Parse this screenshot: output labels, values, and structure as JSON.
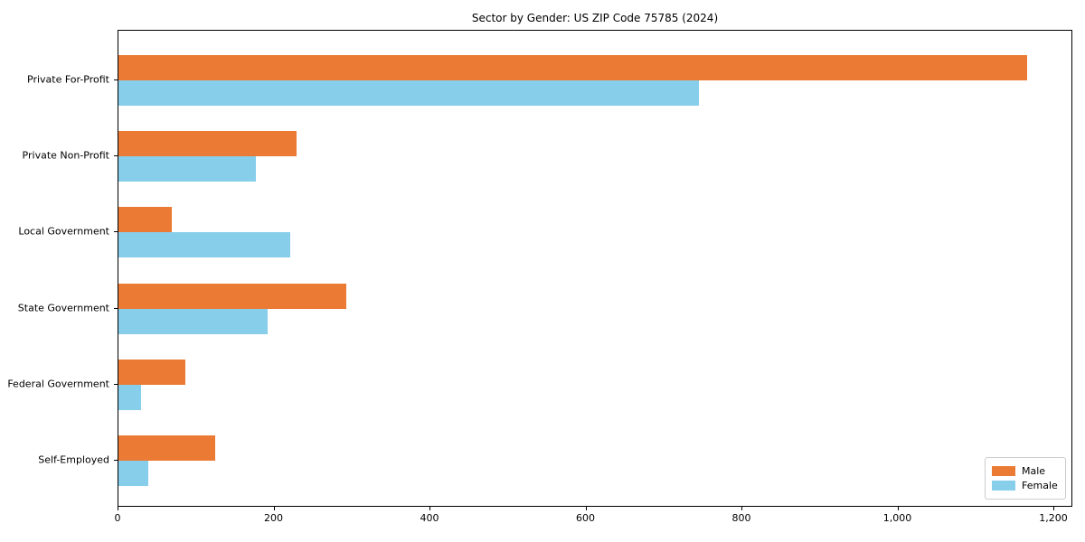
{
  "chart_data": {
    "type": "bar",
    "orientation": "horizontal",
    "title": "Sector by Gender: US ZIP Code 75785 (2024)",
    "xlabel": "",
    "ylabel": "",
    "categories": [
      "Private For-Profit",
      "Private Non-Profit",
      "Local Government",
      "State Government",
      "Federal Government",
      "Self-Employed"
    ],
    "series": [
      {
        "name": "Male",
        "color": "#EB7A34",
        "values": [
          1165,
          228,
          68,
          292,
          86,
          124
        ]
      },
      {
        "name": "Female",
        "color": "#87CEEB",
        "values": [
          744,
          176,
          220,
          191,
          29,
          38
        ]
      }
    ],
    "xlim": [
      0,
      1224
    ],
    "x_ticks": [
      0,
      200,
      400,
      600,
      800,
      1000,
      1200
    ],
    "x_tick_labels": [
      "0",
      "200",
      "400",
      "600",
      "800",
      "1,000",
      "1,200"
    ],
    "grid": false,
    "legend_position": "lower right",
    "frame_color": "#000000",
    "background_color": "#ffffff"
  }
}
